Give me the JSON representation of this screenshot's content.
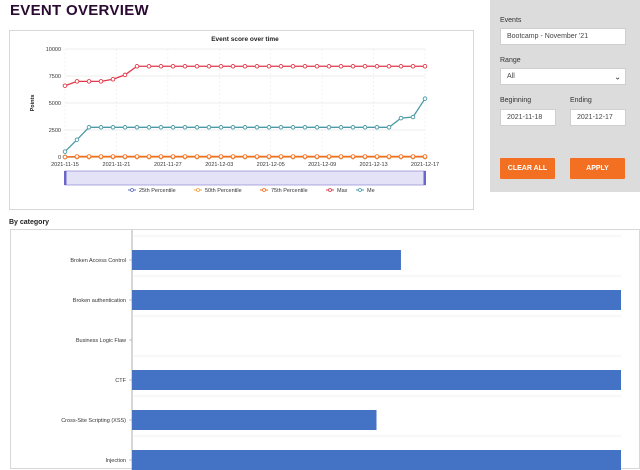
{
  "page": {
    "title": "EVENT OVERVIEW",
    "by_category_title": "By category"
  },
  "filters": {
    "events_label": "Events",
    "events_value": "Bootcamp - November '21",
    "range_label": "Range",
    "range_value": "All",
    "beginning_label": "Beginning",
    "beginning_value": "2021-11-18",
    "ending_label": "Ending",
    "ending_value": "2021-12-17",
    "clear_label": "CLEAR ALL",
    "apply_label": "APPLY"
  },
  "chart_data": [
    {
      "type": "line",
      "title": "Event score over time",
      "xlabel": "",
      "ylabel": "Points",
      "ylim": [
        0,
        10000
      ],
      "yticks": [
        "0",
        "2500",
        "5000",
        "7500",
        "10000"
      ],
      "xtick_labels": [
        "2021-11-15",
        "2021-11-21",
        "2021-11-27",
        "2021-12-03",
        "2021-12-05",
        "2021-12-09",
        "2021-12-13",
        "2021-12-17"
      ],
      "x_count": 31,
      "series": [
        {
          "name": "25th Percentile",
          "color": "#5b6abf",
          "values": [
            0,
            0,
            0,
            0,
            0,
            0,
            0,
            0,
            0,
            0,
            0,
            0,
            0,
            0,
            0,
            0,
            0,
            0,
            0,
            0,
            0,
            0,
            0,
            0,
            0,
            0,
            0,
            0,
            0,
            0,
            0
          ]
        },
        {
          "name": "50th Percentile",
          "color": "#f2a33a",
          "values": [
            0,
            0,
            0,
            0,
            0,
            0,
            0,
            0,
            0,
            0,
            0,
            0,
            0,
            0,
            0,
            0,
            0,
            0,
            0,
            0,
            0,
            0,
            0,
            0,
            0,
            0,
            0,
            0,
            0,
            0,
            0
          ]
        },
        {
          "name": "75th Percentile",
          "color": "#f36f21",
          "values": [
            0,
            50,
            50,
            50,
            50,
            50,
            50,
            50,
            50,
            50,
            50,
            50,
            50,
            50,
            50,
            50,
            50,
            50,
            50,
            50,
            50,
            50,
            50,
            50,
            50,
            50,
            50,
            50,
            50,
            50,
            50
          ]
        },
        {
          "name": "Max",
          "color": "#e0384a",
          "values": [
            6600,
            7000,
            7000,
            7000,
            7200,
            7600,
            8400,
            8400,
            8400,
            8400,
            8400,
            8400,
            8400,
            8400,
            8400,
            8400,
            8400,
            8400,
            8400,
            8400,
            8400,
            8400,
            8400,
            8400,
            8400,
            8400,
            8400,
            8400,
            8400,
            8400,
            8400
          ]
        },
        {
          "name": "Me",
          "color": "#4a9aa6",
          "values": [
            500,
            1600,
            2750,
            2750,
            2750,
            2750,
            2750,
            2750,
            2750,
            2750,
            2750,
            2750,
            2750,
            2750,
            2750,
            2750,
            2750,
            2750,
            2750,
            2750,
            2750,
            2750,
            2750,
            2750,
            2750,
            2750,
            2750,
            2750,
            3600,
            3700,
            5400
          ]
        }
      ]
    },
    {
      "type": "bar",
      "orientation": "horizontal",
      "title": "By category",
      "categories": [
        "Broken Access Control",
        "Broken authentication",
        "Business Logic Flaw",
        "CTF",
        "Cross-Site Scripting (XSS)",
        "Injection"
      ],
      "values": [
        0.55,
        1.0,
        0,
        1.0,
        0.5,
        1.0
      ],
      "color": "#4472c4"
    }
  ]
}
